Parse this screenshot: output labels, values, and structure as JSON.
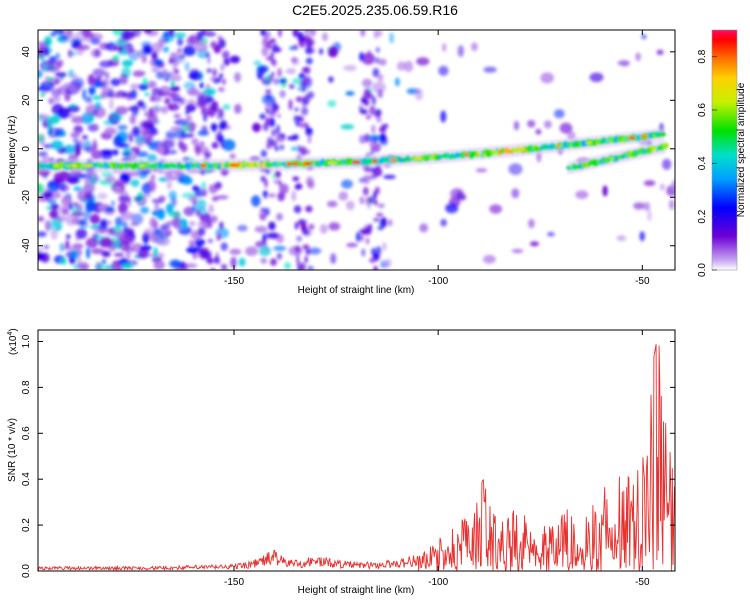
{
  "title": "C2E5.2025.235.06.59.R16",
  "colors": {
    "signal": "#e8302e",
    "axis": "#000000"
  },
  "chart_data": [
    {
      "type": "heatmap",
      "name": "spectrogram",
      "xlabel": "Height of straight line (km)",
      "ylabel": "Frequency (Hz)",
      "xlim": [
        -198,
        -42
      ],
      "ylim": [
        -50,
        49
      ],
      "xticks": [
        -150,
        -100,
        -50
      ],
      "yticks": [
        40,
        20,
        0,
        -20,
        -40
      ],
      "colorbar": {
        "label": "Normalized spectral amplitude",
        "range": [
          0,
          0.9
        ],
        "ticks": [
          "0.0",
          "0.2",
          "0.4",
          "0.6",
          "0.8"
        ]
      },
      "ridges": [
        {
          "name": "main trace",
          "x": [
            -198,
            -160,
            -140,
            -120,
            -100,
            -80,
            -60,
            -45
          ],
          "freq": [
            -7,
            -7,
            -6.5,
            -5.5,
            -3.5,
            -0.5,
            3,
            6
          ]
        },
        {
          "name": "secondary trace",
          "x": [
            -68,
            -60,
            -52,
            -44
          ],
          "freq": [
            -8,
            -5,
            -2,
            1
          ]
        }
      ]
    },
    {
      "type": "line",
      "name": "snr",
      "xlabel": "Height of straight line (km)",
      "ylabel": "SNR (10 * v/v)",
      "scale_note": "(x10",
      "scale_exp": "4",
      "scale_close": ")",
      "xlim": [
        -198,
        -42
      ],
      "ylim": [
        0,
        1.05
      ],
      "xticks": [
        -150,
        -100,
        -50
      ],
      "yticks": [
        "0.0",
        "0.2",
        "0.4",
        "0.6",
        "0.8",
        "1.0"
      ],
      "envelope": {
        "x": [
          -198,
          -170,
          -150,
          -145,
          -142,
          -140,
          -138,
          -134,
          -130,
          -125,
          -120,
          -115,
          -108,
          -103,
          -100,
          -96,
          -92,
          -89,
          -85,
          -80,
          -75,
          -70,
          -65,
          -60,
          -55,
          -52,
          -50,
          -48,
          -46,
          -45,
          -43,
          -42
        ],
        "max": [
          0.02,
          0.02,
          0.03,
          0.05,
          0.08,
          0.1,
          0.06,
          0.05,
          0.07,
          0.05,
          0.04,
          0.04,
          0.06,
          0.09,
          0.14,
          0.2,
          0.25,
          0.4,
          0.24,
          0.26,
          0.24,
          0.27,
          0.28,
          0.3,
          0.4,
          0.5,
          0.65,
          0.85,
          1.05,
          0.7,
          0.55,
          0.4
        ]
      }
    }
  ]
}
